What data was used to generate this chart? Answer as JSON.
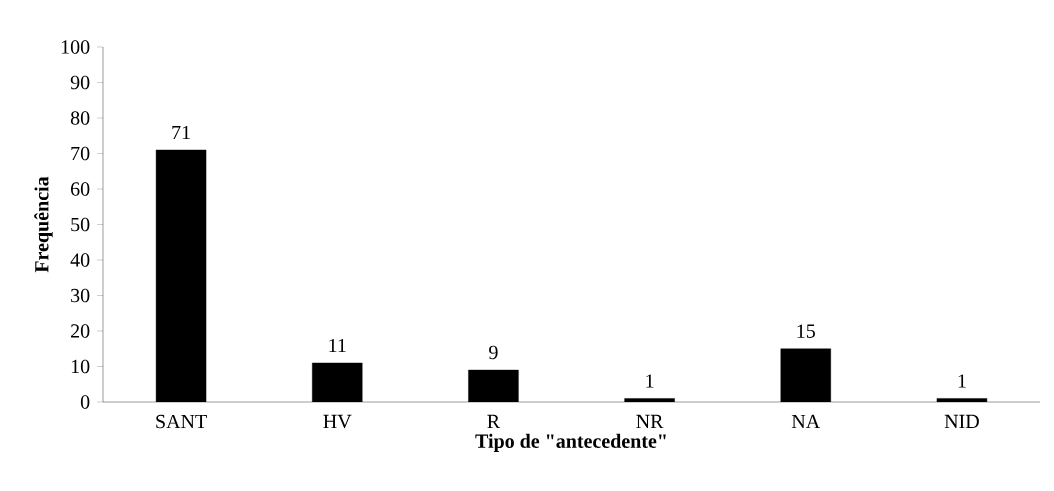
{
  "chart_data": {
    "type": "bar",
    "xlabel": "Tipo de \"antecedente\"",
    "ylabel": "Frequência",
    "categories": [
      "SANT",
      "HV",
      "R",
      "NR",
      "NA",
      "NID"
    ],
    "values": [
      71,
      11,
      9,
      1,
      15,
      1
    ],
    "color": "#000000",
    "ylim": [
      0,
      100
    ],
    "yticks": [
      0,
      10,
      20,
      30,
      40,
      50,
      60,
      70,
      80,
      90,
      100
    ],
    "data_labels": true,
    "grid": false
  }
}
